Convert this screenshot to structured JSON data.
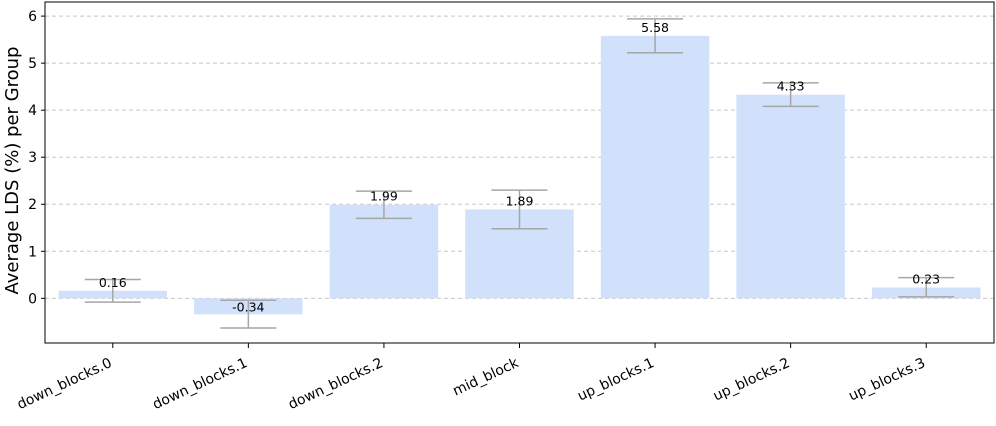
{
  "chart_data": {
    "type": "bar",
    "title": "",
    "xlabel": "",
    "ylabel": "Average LDS (%) per Group",
    "categories": [
      "down_blocks.0",
      "down_blocks.1",
      "down_blocks.2",
      "mid_block",
      "up_blocks.1",
      "up_blocks.2",
      "up_blocks.3"
    ],
    "values": [
      0.16,
      -0.34,
      1.99,
      1.89,
      5.58,
      4.33,
      0.23
    ],
    "value_labels": [
      "0.16",
      "-0.34",
      "1.99",
      "1.89",
      "5.58",
      "4.33",
      "0.23"
    ],
    "error_low": [
      -0.08,
      -0.63,
      1.7,
      1.48,
      5.22,
      4.08,
      0.03
    ],
    "error_high": [
      0.4,
      -0.04,
      2.28,
      2.3,
      5.94,
      4.58,
      0.44
    ],
    "ylim": [
      -0.95,
      6.3
    ],
    "yticks": [
      0,
      1,
      2,
      3,
      4,
      5,
      6
    ],
    "grid": "y-dashed",
    "colors": {
      "bar": "#d1e0fb",
      "errorbar": "#a6a6a6",
      "grid": "#c8c8c8",
      "axis": "#000000"
    }
  }
}
